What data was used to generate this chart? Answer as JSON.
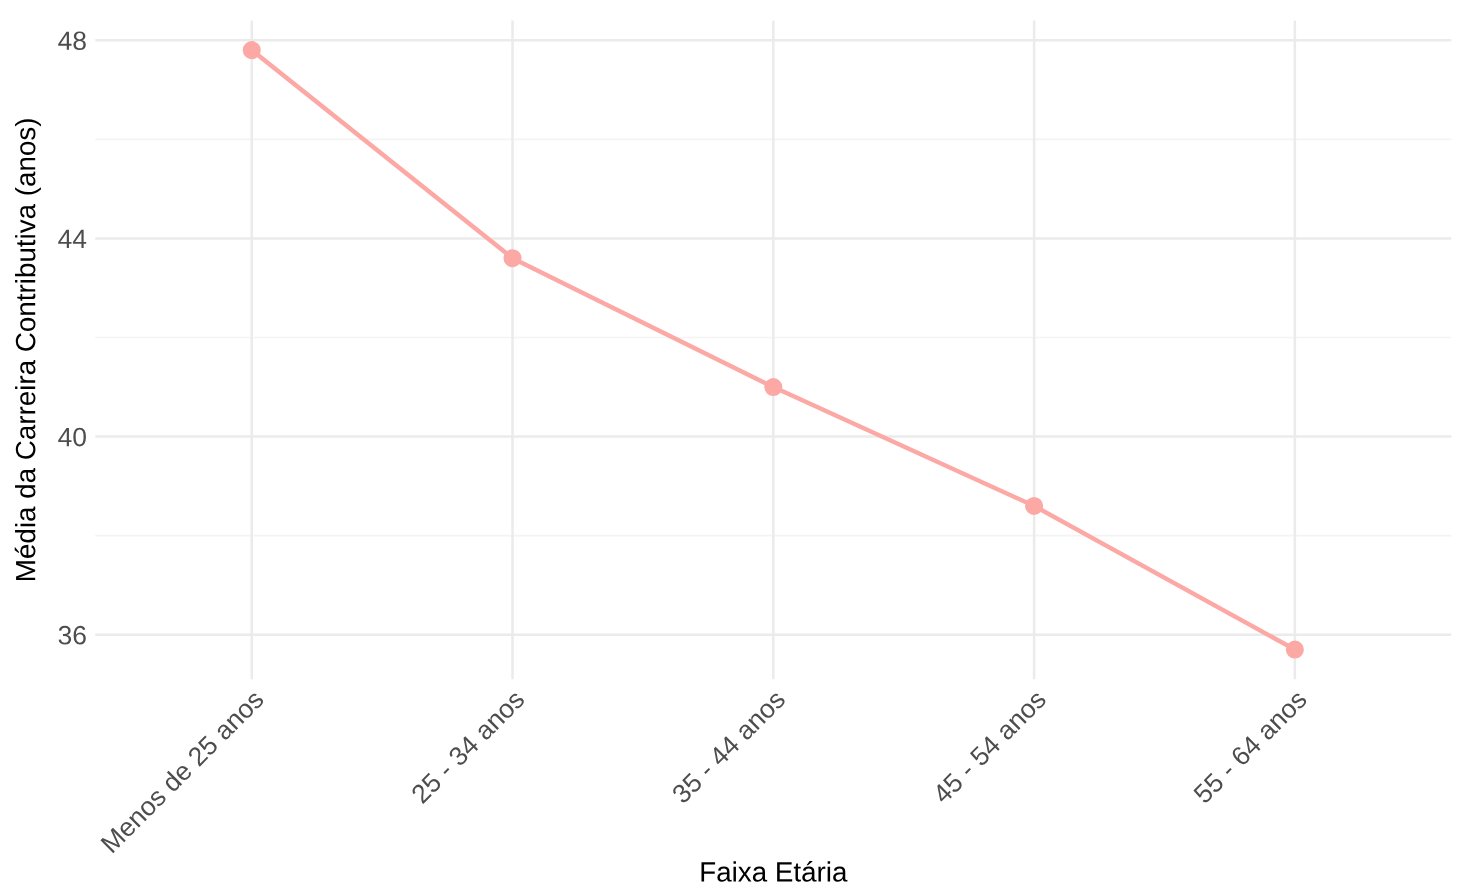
{
  "chart_data": {
    "type": "line",
    "xlabel": "Faixa Etária",
    "ylabel": "Média da Carreira Contributiva (anos)",
    "categories": [
      "Menos de 25 anos",
      "25 - 34 anos",
      "35 - 44 anos",
      "45 - 54 anos",
      "55 - 64 anos"
    ],
    "series": [
      {
        "color": "#fca9a6",
        "values": [
          47.8,
          43.6,
          41.0,
          38.6,
          35.7
        ]
      }
    ],
    "ylim": [
      35.1,
      48.4
    ],
    "yticks": [
      36,
      40,
      44,
      48
    ],
    "grid": true,
    "marker": "circle",
    "line_style": "solid"
  }
}
